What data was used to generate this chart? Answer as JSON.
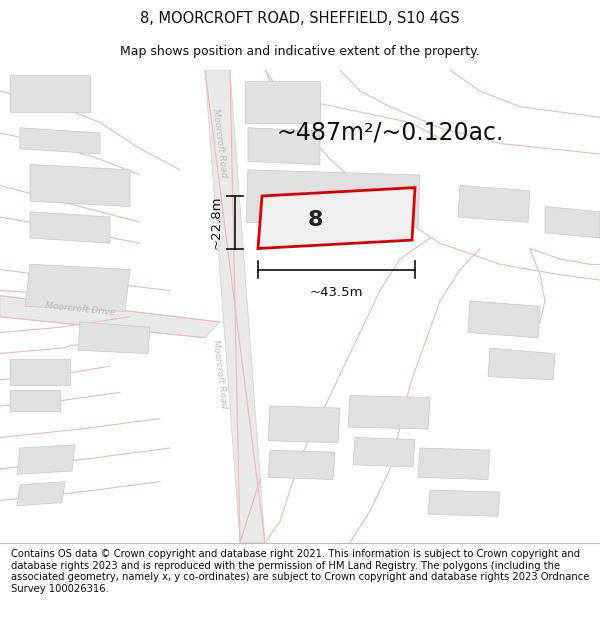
{
  "title": "8, MOORCROFT ROAD, SHEFFIELD, S10 4GS",
  "subtitle": "Map shows position and indicative extent of the property.",
  "footer": "Contains OS data © Crown copyright and database right 2021. This information is subject to Crown copyright and database rights 2023 and is reproduced with the permission of HM Land Registry. The polygons (including the associated geometry, namely x, y co-ordinates) are subject to Crown copyright and database rights 2023 Ordnance Survey 100026316.",
  "area_label": "~487m²/~0.120ac.",
  "width_label": "~43.5m",
  "height_label": "~22.8m",
  "number_label": "8",
  "map_bg": "#ffffff",
  "road_fill": "#e8e8e8",
  "road_stroke": "#f0b8b8",
  "building_fill": "#e0e0e0",
  "building_stroke": "#c8c8c8",
  "highlight_stroke": "#dd0000",
  "highlight_fill": "#f0f0f0",
  "dim_line_color": "#111111",
  "road_label_color": "#bbbbbb",
  "title_fontsize": 10.5,
  "subtitle_fontsize": 9,
  "footer_fontsize": 7.2,
  "area_fontsize": 17,
  "number_fontsize": 16,
  "dim_fontsize": 9.5
}
